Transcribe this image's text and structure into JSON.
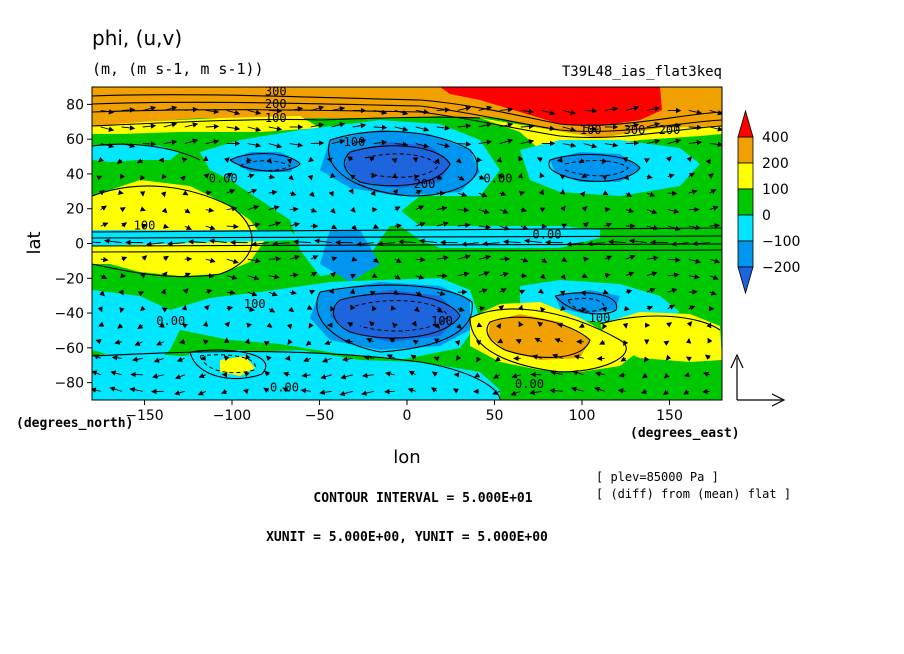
{
  "chart_data": {
    "type": "heatmap",
    "title": "phi, (u,v)",
    "subtitle": "(m, (m s-1, m s-1))",
    "run_label": "T39L48_ias_flat3keq",
    "xlabel": "lon",
    "ylabel": "lat",
    "x_units": "(degrees_east)",
    "y_units": "(degrees_north)",
    "xlim": [
      -180,
      180
    ],
    "ylim": [
      -90,
      90
    ],
    "x_ticks": [
      -150,
      -100,
      -50,
      0,
      50,
      100,
      150
    ],
    "x_tick_labels": [
      "−150",
      "−100",
      "−50",
      "0",
      "50",
      "100",
      "150"
    ],
    "y_ticks": [
      -80,
      -60,
      -40,
      -20,
      0,
      20,
      40,
      60,
      80
    ],
    "y_tick_labels": [
      "−80",
      "−60",
      "−40",
      "−20",
      "0",
      "20",
      "40",
      "60",
      "80"
    ],
    "colorbar": {
      "levels": [
        -200,
        -100,
        0,
        100,
        200,
        400
      ],
      "labels": [
        "400",
        "200",
        "100",
        "0",
        "−100",
        "−200"
      ],
      "colors": [
        "#1e64dc",
        "#0096f0",
        "#00e6ff",
        "#00c800",
        "#ffff00",
        "#f0a000",
        "#ff0000"
      ]
    },
    "contour_labels": [
      {
        "text": "300",
        "lon": -75,
        "lat": 85
      },
      {
        "text": "200",
        "lon": -75,
        "lat": 78
      },
      {
        "text": "100",
        "lon": -75,
        "lat": 70
      },
      {
        "text": "100",
        "lon": -30,
        "lat": 56
      },
      {
        "text": "0.00",
        "lon": -105,
        "lat": 35
      },
      {
        "text": "200",
        "lon": 10,
        "lat": 32
      },
      {
        "text": "0.00",
        "lon": 52,
        "lat": 35
      },
      {
        "text": "100",
        "lon": 105,
        "lat": 63
      },
      {
        "text": "300",
        "lon": 130,
        "lat": 63
      },
      {
        "text": "200",
        "lon": 150,
        "lat": 63
      },
      {
        "text": "100",
        "lon": -150,
        "lat": 8
      },
      {
        "text": "0.00",
        "lon": 80,
        "lat": 3
      },
      {
        "text": "100",
        "lon": -87,
        "lat": -37
      },
      {
        "text": "0.00",
        "lon": -135,
        "lat": -47
      },
      {
        "text": "100",
        "lon": 20,
        "lat": -47
      },
      {
        "text": "100",
        "lon": 110,
        "lat": -45
      },
      {
        "text": "0.00",
        "lon": -70,
        "lat": -85
      },
      {
        "text": "0.00",
        "lon": 70,
        "lat": -83
      }
    ],
    "contour_interval": "CONTOUR INTERVAL = 5.000E+01",
    "vector_units": "XUNIT = 5.000E+00, YUNIT = 5.000E+00",
    "notes": [
      "[ plev=85000 Pa ]",
      "[ (diff) from (mean) flat ]"
    ],
    "grid": false
  }
}
